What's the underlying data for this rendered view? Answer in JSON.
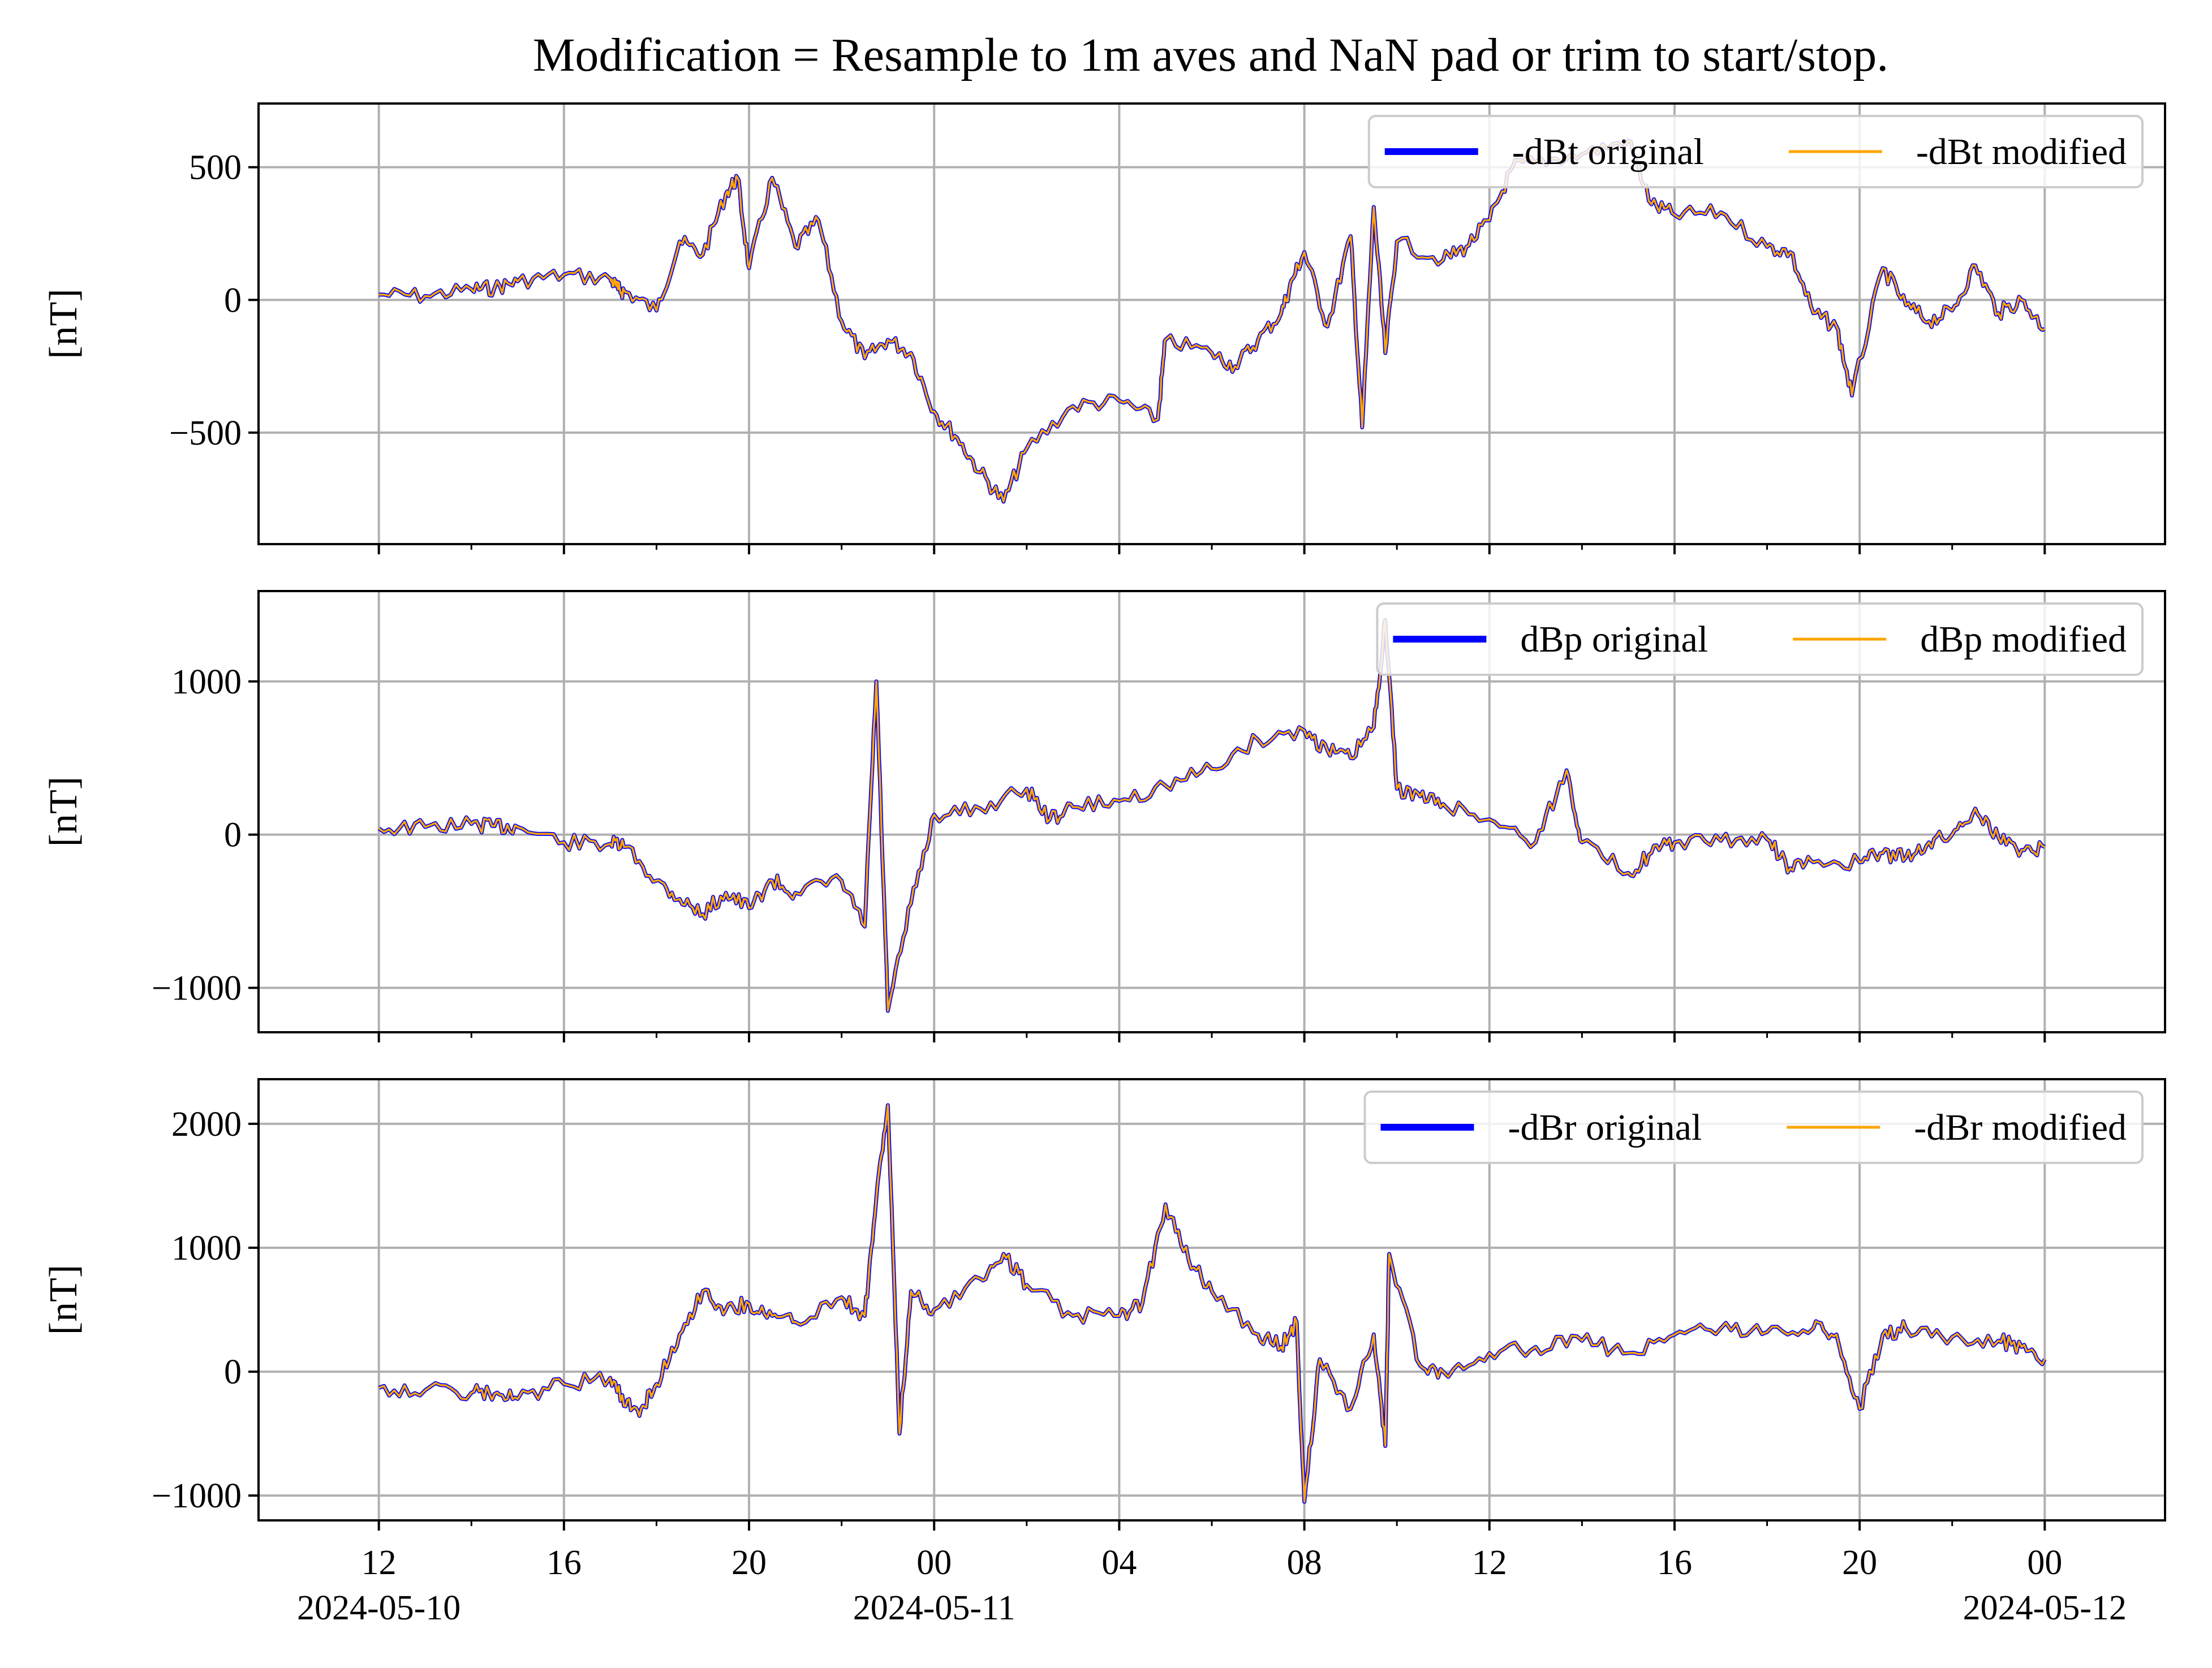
{
  "title": "Modification = Resample to 1m aves and NaN pad or trim to start/stop.",
  "colors": {
    "original": "#0000ff",
    "modified": "#ffa500",
    "grid": "#b0b0b0"
  },
  "x_axis": {
    "start": "2024-05-10 12:00",
    "end": "2024-05-12 00:00",
    "range": [
      "2024-05-10 09:24",
      "2024-05-12 02:36"
    ],
    "major_ticks": [
      {
        "time": "2024-05-10 12:00",
        "label": "12",
        "date_label": "2024-05-10"
      },
      {
        "time": "2024-05-10 16:00",
        "label": "16"
      },
      {
        "time": "2024-05-10 20:00",
        "label": "20"
      },
      {
        "time": "2024-05-11 00:00",
        "label": "00",
        "date_label": "2024-05-11"
      },
      {
        "time": "2024-05-11 04:00",
        "label": "04"
      },
      {
        "time": "2024-05-11 08:00",
        "label": "08"
      },
      {
        "time": "2024-05-11 12:00",
        "label": "12"
      },
      {
        "time": "2024-05-11 16:00",
        "label": "16"
      },
      {
        "time": "2024-05-11 20:00",
        "label": "20"
      },
      {
        "time": "2024-05-12 00:00",
        "label": "00",
        "date_label": "2024-05-12"
      }
    ]
  },
  "chart_data": [
    {
      "type": "line",
      "ylabel": "[nT]",
      "ylim": [
        -920,
        740
      ],
      "yticks": [
        {
          "value": -500,
          "label": "−500"
        },
        {
          "value": 0,
          "label": "0"
        },
        {
          "value": 500,
          "label": "500"
        }
      ],
      "grid": true,
      "legend": "upper right, 2 columns",
      "series": [
        {
          "name": "-dBt original",
          "color": "#0000ff"
        },
        {
          "name": "-dBt modified",
          "color": "#ffa500"
        }
      ],
      "x": [
        "2024-05-10 12:00",
        "2024-05-10 13:00",
        "2024-05-10 14:00",
        "2024-05-10 14:30",
        "2024-05-10 15:00",
        "2024-05-10 16:00",
        "2024-05-10 17:00",
        "2024-05-10 17:10",
        "2024-05-10 17:20",
        "2024-05-10 18:00",
        "2024-05-10 18:30",
        "2024-05-10 19:00",
        "2024-05-10 19:30",
        "2024-05-10 19:45",
        "2024-05-10 20:00",
        "2024-05-10 20:30",
        "2024-05-10 21:00",
        "2024-05-10 21:30",
        "2024-05-10 22:00",
        "2024-05-10 22:30",
        "2024-05-10 23:00",
        "2024-05-10 23:30",
        "2024-05-11 00:00",
        "2024-05-11 00:30",
        "2024-05-11 01:00",
        "2024-05-11 01:30",
        "2024-05-11 02:00",
        "2024-05-11 03:00",
        "2024-05-11 04:00",
        "2024-05-11 04:50",
        "2024-05-11 05:00",
        "2024-05-11 06:00",
        "2024-05-11 06:30",
        "2024-05-11 07:00",
        "2024-05-11 07:30",
        "2024-05-11 07:45",
        "2024-05-11 08:00",
        "2024-05-11 08:30",
        "2024-05-11 09:00",
        "2024-05-11 09:15",
        "2024-05-11 09:30",
        "2024-05-11 09:45",
        "2024-05-11 10:00",
        "2024-05-11 11:00",
        "2024-05-11 11:30",
        "2024-05-11 12:00",
        "2024-05-11 12:30",
        "2024-05-11 13:00",
        "2024-05-11 14:00",
        "2024-05-11 15:00",
        "2024-05-11 15:30",
        "2024-05-11 16:00",
        "2024-05-11 17:00",
        "2024-05-11 18:00",
        "2024-05-11 18:30",
        "2024-05-11 19:00",
        "2024-05-11 19:30",
        "2024-05-11 19:50",
        "2024-05-11 20:30",
        "2024-05-11 21:00",
        "2024-05-11 21:30",
        "2024-05-11 22:00",
        "2024-05-11 22:30",
        "2024-05-11 23:00",
        "2024-05-11 23:30",
        "2024-05-12 00:00"
      ],
      "values": [
        20,
        15,
        40,
        45,
        70,
        95,
        80,
        40,
        30,
        -40,
        220,
        170,
        400,
        460,
        120,
        460,
        200,
        300,
        -80,
        -220,
        -150,
        -200,
        -420,
        -520,
        -650,
        -760,
        -560,
        -400,
        -380,
        -450,
        -150,
        -200,
        -250,
        -150,
        -50,
        80,
        180,
        -100,
        240,
        -480,
        350,
        -200,
        220,
        150,
        200,
        300,
        500,
        520,
        550,
        600,
        360,
        320,
        330,
        200,
        180,
        -50,
        -100,
        -360,
        120,
        -20,
        -80,
        -40,
        130,
        -50,
        0,
        -110
      ]
    },
    {
      "type": "line",
      "ylabel": "[nT]",
      "ylim": [
        -1290,
        1590
      ],
      "yticks": [
        {
          "value": -1000,
          "label": "−1000"
        },
        {
          "value": 0,
          "label": "0"
        },
        {
          "value": 1000,
          "label": "1000"
        }
      ],
      "grid": true,
      "legend": "upper right, 2 columns",
      "series": [
        {
          "name": "dBp original",
          "color": "#0000ff"
        },
        {
          "name": "dBp modified",
          "color": "#ffa500"
        }
      ],
      "x": [
        "2024-05-10 12:00",
        "2024-05-10 13:00",
        "2024-05-10 14:00",
        "2024-05-10 14:30",
        "2024-05-10 15:00",
        "2024-05-10 16:00",
        "2024-05-10 17:00",
        "2024-05-10 17:20",
        "2024-05-10 18:00",
        "2024-05-10 18:30",
        "2024-05-10 19:00",
        "2024-05-10 19:30",
        "2024-05-10 20:00",
        "2024-05-10 20:30",
        "2024-05-10 21:00",
        "2024-05-10 22:00",
        "2024-05-10 22:30",
        "2024-05-10 22:45",
        "2024-05-10 23:00",
        "2024-05-10 23:30",
        "2024-05-11 00:00",
        "2024-05-11 01:00",
        "2024-05-11 02:00",
        "2024-05-11 02:30",
        "2024-05-11 03:00",
        "2024-05-11 04:00",
        "2024-05-11 05:00",
        "2024-05-11 06:00",
        "2024-05-11 07:00",
        "2024-05-11 08:00",
        "2024-05-11 08:30",
        "2024-05-11 09:00",
        "2024-05-11 09:30",
        "2024-05-11 09:45",
        "2024-05-11 10:00",
        "2024-05-11 10:30",
        "2024-05-11 11:00",
        "2024-05-11 12:00",
        "2024-05-11 13:00",
        "2024-05-11 13:40",
        "2024-05-11 14:00",
        "2024-05-11 15:00",
        "2024-05-11 15:30",
        "2024-05-11 16:00",
        "2024-05-11 17:00",
        "2024-05-11 18:00",
        "2024-05-11 18:30",
        "2024-05-11 19:00",
        "2024-05-11 20:00",
        "2024-05-11 20:30",
        "2024-05-11 21:00",
        "2024-05-11 21:30",
        "2024-05-11 22:00",
        "2024-05-11 22:30",
        "2024-05-11 23:00",
        "2024-05-11 23:30",
        "2024-05-12 00:00"
      ],
      "values": [
        40,
        50,
        70,
        55,
        50,
        -50,
        -60,
        -80,
        -300,
        -420,
        -520,
        -380,
        -480,
        -300,
        -380,
        -300,
        -600,
        1000,
        -1150,
        -450,
        130,
        170,
        300,
        100,
        180,
        220,
        320,
        430,
        620,
        680,
        550,
        500,
        700,
        1400,
        300,
        250,
        200,
        100,
        -50,
        420,
        -50,
        -250,
        -120,
        -50,
        -40,
        -30,
        -220,
        -180,
        -180,
        -120,
        -150,
        -50,
        0,
        170,
        -20,
        -100,
        -80
      ]
    },
    {
      "type": "line",
      "ylabel": "[nT]",
      "ylim": [
        -1200,
        2360
      ],
      "yticks": [
        {
          "value": -1000,
          "label": "−1000"
        },
        {
          "value": 0,
          "label": "0"
        },
        {
          "value": 1000,
          "label": "1000"
        },
        {
          "value": 2000,
          "label": "2000"
        }
      ],
      "grid": true,
      "legend": "upper right, 2 columns",
      "series": [
        {
          "name": "-dBr original",
          "color": "#0000ff"
        },
        {
          "name": "-dBr modified",
          "color": "#ffa500"
        }
      ],
      "x": [
        "2024-05-10 12:00",
        "2024-05-10 13:00",
        "2024-05-10 14:00",
        "2024-05-10 14:30",
        "2024-05-10 15:00",
        "2024-05-10 16:00",
        "2024-05-10 17:00",
        "2024-05-10 17:20",
        "2024-05-10 17:40",
        "2024-05-10 18:00",
        "2024-05-10 18:30",
        "2024-05-10 19:00",
        "2024-05-10 19:30",
        "2024-05-10 20:00",
        "2024-05-10 20:30",
        "2024-05-10 21:00",
        "2024-05-10 22:00",
        "2024-05-10 22:30",
        "2024-05-10 22:45",
        "2024-05-10 23:00",
        "2024-05-10 23:15",
        "2024-05-10 23:30",
        "2024-05-11 00:00",
        "2024-05-11 01:00",
        "2024-05-11 01:30",
        "2024-05-11 02:00",
        "2024-05-11 03:00",
        "2024-05-11 04:00",
        "2024-05-11 04:30",
        "2024-05-11 05:00",
        "2024-05-11 05:30",
        "2024-05-11 06:00",
        "2024-05-11 07:00",
        "2024-05-11 07:30",
        "2024-05-11 07:50",
        "2024-05-11 08:00",
        "2024-05-11 08:20",
        "2024-05-11 09:00",
        "2024-05-11 09:30",
        "2024-05-11 09:45",
        "2024-05-11 09:50",
        "2024-05-11 10:30",
        "2024-05-11 11:00",
        "2024-05-11 12:00",
        "2024-05-11 13:00",
        "2024-05-11 14:00",
        "2024-05-11 15:00",
        "2024-05-11 16:00",
        "2024-05-11 17:00",
        "2024-05-11 18:00",
        "2024-05-11 19:00",
        "2024-05-11 19:30",
        "2024-05-11 20:00",
        "2024-05-11 20:30",
        "2024-05-11 21:00",
        "2024-05-11 22:00",
        "2024-05-11 23:00",
        "2024-05-11 23:30",
        "2024-05-12 00:00"
      ],
      "values": [
        -130,
        -150,
        -170,
        -180,
        -220,
        -100,
        -50,
        -280,
        -300,
        -100,
        300,
        650,
        500,
        550,
        450,
        400,
        600,
        450,
        1400,
        2150,
        -500,
        650,
        500,
        750,
        950,
        700,
        450,
        450,
        550,
        1350,
        900,
        650,
        300,
        200,
        400,
        -1050,
        100,
        -300,
        300,
        -600,
        950,
        50,
        0,
        150,
        200,
        250,
        150,
        300,
        350,
        320,
        350,
        300,
        -300,
        300,
        350,
        280,
        250,
        200,
        100
      ]
    }
  ]
}
